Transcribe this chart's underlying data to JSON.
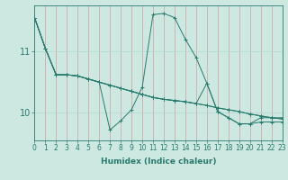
{
  "title": "",
  "xlabel": "Humidex (Indice chaleur)",
  "bg_color": "#cce8e0",
  "line_color": "#2a7a6e",
  "grid_color": "#b0d8d0",
  "xmin": 0,
  "xmax": 23,
  "ymin": 9.55,
  "ymax": 11.75,
  "yticks": [
    10,
    11
  ],
  "xticks": [
    0,
    1,
    2,
    3,
    4,
    5,
    6,
    7,
    8,
    9,
    10,
    11,
    12,
    13,
    14,
    15,
    16,
    17,
    18,
    19,
    20,
    21,
    22,
    23
  ],
  "lines": [
    {
      "x": [
        0,
        1,
        2,
        3,
        4,
        5,
        6,
        7,
        8,
        9,
        10,
        11,
        12,
        13,
        14,
        15,
        16,
        17,
        18,
        19,
        20,
        21,
        22,
        23
      ],
      "y": [
        11.55,
        11.05,
        10.62,
        10.62,
        10.6,
        10.55,
        10.5,
        9.72,
        9.87,
        10.05,
        10.42,
        11.6,
        11.62,
        11.55,
        11.2,
        10.9,
        10.48,
        10.02,
        9.92,
        9.82,
        9.82,
        9.92,
        9.92,
        9.92
      ]
    },
    {
      "x": [
        0,
        1,
        2,
        3,
        4,
        5,
        6,
        7,
        8,
        9,
        10,
        11,
        12,
        13,
        14,
        15,
        16,
        17,
        18,
        19,
        20,
        21,
        22,
        23
      ],
      "y": [
        11.55,
        11.05,
        10.62,
        10.62,
        10.6,
        10.55,
        10.5,
        10.45,
        10.4,
        10.35,
        10.3,
        10.25,
        10.22,
        10.2,
        10.18,
        10.15,
        10.48,
        10.02,
        9.92,
        9.82,
        9.82,
        9.85,
        9.85,
        9.85
      ]
    },
    {
      "x": [
        0,
        1,
        2,
        3,
        4,
        5,
        6,
        7,
        8,
        9,
        10,
        11,
        12,
        13,
        14,
        15,
        16,
        17,
        18,
        19,
        20,
        21,
        22,
        23
      ],
      "y": [
        11.55,
        11.05,
        10.62,
        10.62,
        10.6,
        10.55,
        10.5,
        10.45,
        10.4,
        10.35,
        10.3,
        10.25,
        10.22,
        10.2,
        10.18,
        10.15,
        10.12,
        10.08,
        10.05,
        10.02,
        9.98,
        9.95,
        9.92,
        9.9
      ]
    },
    {
      "x": [
        0,
        1,
        2,
        3,
        4,
        5,
        6,
        7,
        8,
        9,
        10,
        11,
        12,
        13,
        14,
        15,
        16,
        17,
        18,
        19,
        20,
        21,
        22,
        23
      ],
      "y": [
        11.55,
        11.05,
        10.62,
        10.62,
        10.6,
        10.55,
        10.5,
        10.45,
        10.4,
        10.35,
        10.3,
        10.25,
        10.22,
        10.2,
        10.18,
        10.15,
        10.12,
        10.08,
        10.05,
        10.02,
        9.98,
        9.95,
        9.92,
        9.9
      ]
    }
  ],
  "xlabel_fontsize": 6.5,
  "tick_fontsize": 5.5,
  "ytick_fontsize": 7
}
